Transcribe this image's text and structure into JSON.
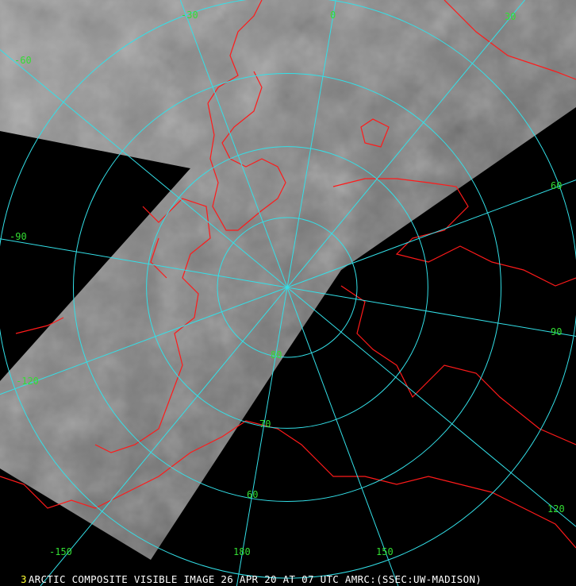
{
  "caption": {
    "frame_number": "3",
    "text": "ARCTIC COMPOSITE VISIBLE IMAGE 26 APR 20 AT 07 UTC AMRC:(SSEC:UW-MADISON)"
  },
  "graticule": {
    "longitude_labels": [
      "-60",
      "-30",
      "0",
      "30",
      "60",
      "90",
      "120",
      "150",
      "180",
      "-150",
      "-120",
      "-90"
    ],
    "latitude_labels": [
      "80",
      "70",
      "60"
    ],
    "grid_color": "#33e0e8",
    "label_color": "#33dd33"
  },
  "coastline_color": "#ff1a1a",
  "projection": "north polar stereographic"
}
